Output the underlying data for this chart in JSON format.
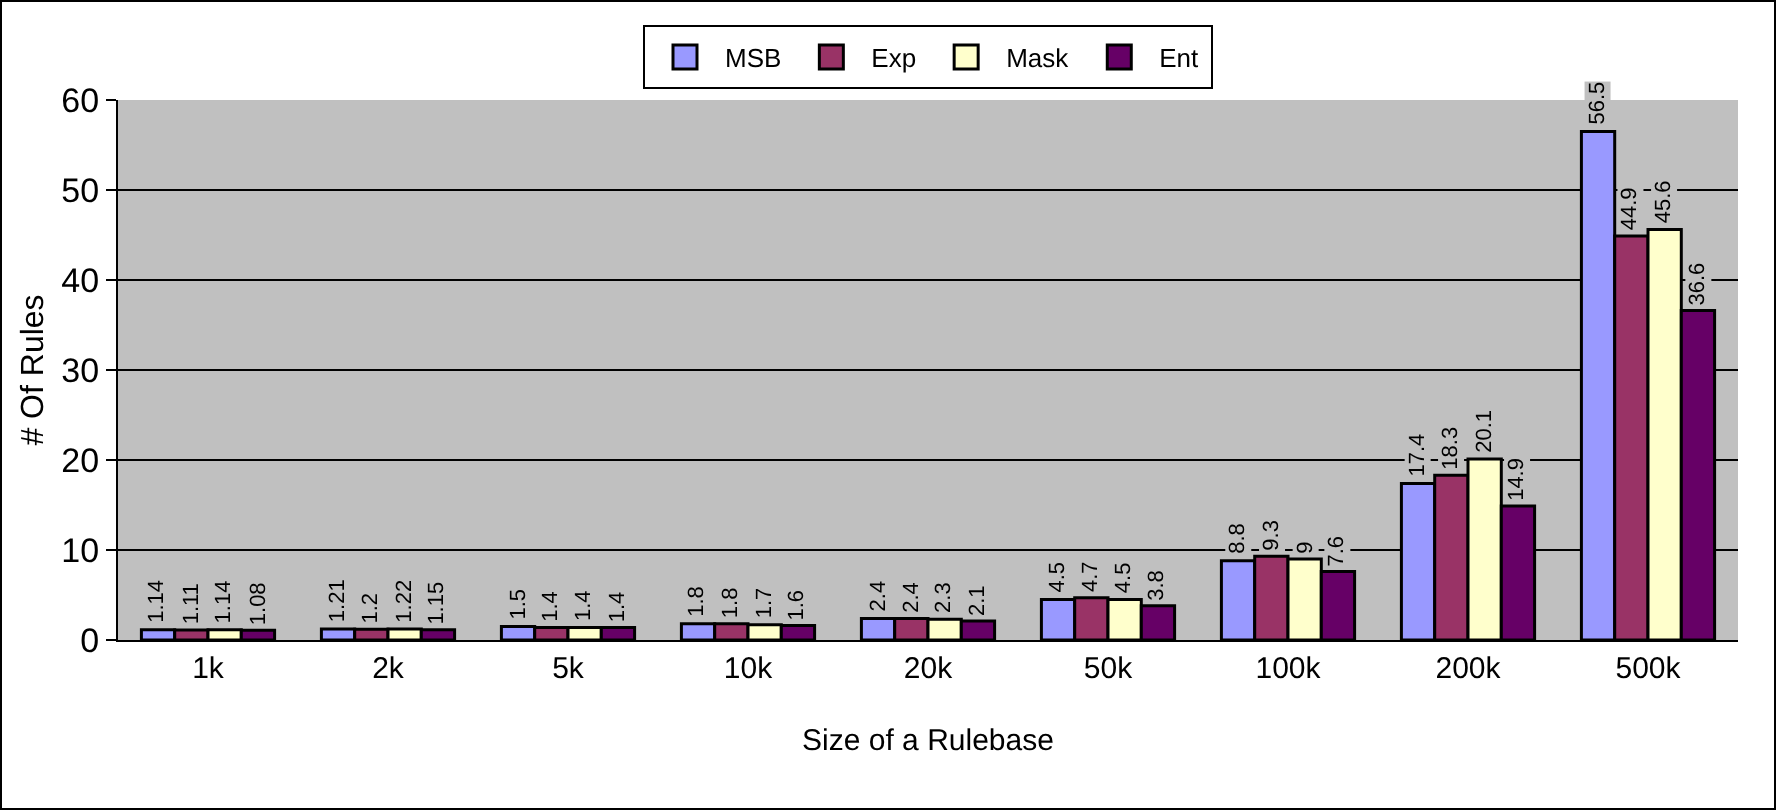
{
  "chart_data": {
    "type": "bar",
    "xlabel": "Size of a Rulebase",
    "ylabel": "# Of Rules",
    "categories": [
      "1k",
      "2k",
      "5k",
      "10k",
      "20k",
      "50k",
      "100k",
      "200k",
      "500k"
    ],
    "series": [
      {
        "name": "MSB",
        "color": "#9999ff",
        "values": [
          1.14,
          1.21,
          1.5,
          1.8,
          2.4,
          4.5,
          8.8,
          17.4,
          56.5
        ]
      },
      {
        "name": "Exp",
        "color": "#993366",
        "values": [
          1.11,
          1.2,
          1.4,
          1.8,
          2.4,
          4.7,
          9.3,
          18.3,
          44.9
        ]
      },
      {
        "name": "Mask",
        "color": "#ffffcc",
        "values": [
          1.14,
          1.22,
          1.4,
          1.7,
          2.3,
          4.5,
          9,
          20.1,
          45.6
        ]
      },
      {
        "name": "Ent",
        "color": "#660066",
        "values": [
          1.08,
          1.15,
          1.4,
          1.6,
          2.1,
          3.8,
          7.6,
          14.9,
          36.6
        ]
      }
    ],
    "ylim": [
      0,
      60
    ],
    "yticks": [
      0,
      10,
      20,
      30,
      40,
      50,
      60
    ],
    "grid": "y",
    "legend": "top",
    "data_labels": true
  }
}
